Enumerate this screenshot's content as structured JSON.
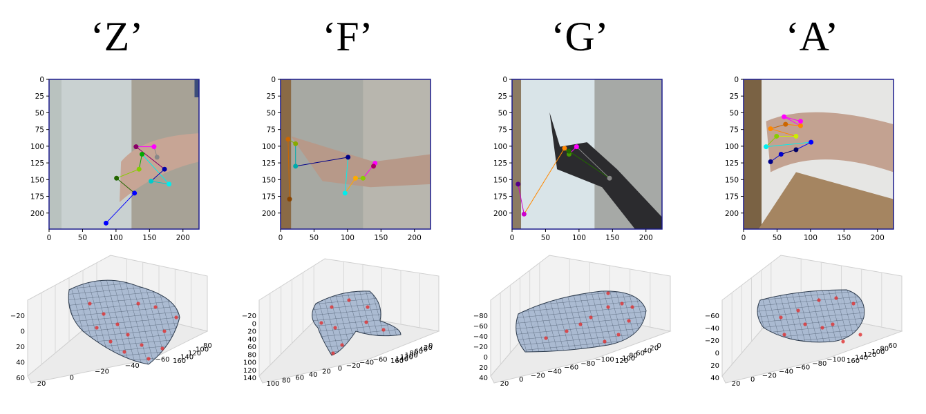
{
  "panels": [
    {
      "title": "‘Z’",
      "image": {
        "x_ticks": [
          "0",
          "50",
          "100",
          "150",
          "200"
        ],
        "y_ticks": [
          "0",
          "25",
          "50",
          "75",
          "100",
          "125",
          "150",
          "175",
          "200"
        ],
        "scene": "wall-right"
      },
      "mesh": {
        "z_ticks": [
          "−20",
          "0",
          "20",
          "40",
          "60"
        ],
        "x_ticks": [
          "20",
          "0",
          "−20",
          "−40",
          "−60"
        ],
        "y_ticks": [
          "80",
          "100",
          "120",
          "140",
          "160"
        ]
      }
    },
    {
      "title": "‘F’",
      "image": {
        "x_ticks": [
          "0",
          "50",
          "100",
          "150",
          "200"
        ],
        "y_ticks": [
          "0",
          "25",
          "50",
          "75",
          "100",
          "125",
          "150",
          "175",
          "200"
        ],
        "scene": "door-left"
      },
      "mesh": {
        "z_ticks": [
          "−20",
          "0",
          "20",
          "40",
          "60",
          "80",
          "100",
          "120",
          "140"
        ],
        "x_ticks": [
          "100",
          "80",
          "60",
          "40",
          "20",
          "0",
          "−20",
          "−40",
          "−60"
        ],
        "y_ticks": [
          "0",
          "20",
          "40",
          "60",
          "80",
          "100",
          "120",
          "140",
          "160"
        ]
      }
    },
    {
      "title": "‘G’",
      "image": {
        "x_ticks": [
          "0",
          "50",
          "100",
          "150",
          "200"
        ],
        "y_ticks": [
          "0",
          "25",
          "50",
          "75",
          "100",
          "125",
          "150",
          "175",
          "200"
        ],
        "scene": "bright-window"
      },
      "mesh": {
        "z_ticks": [
          "−80",
          "−60",
          "−40",
          "−20",
          "0",
          "20",
          "40"
        ],
        "x_ticks": [
          "20",
          "0",
          "−20",
          "−40",
          "−60",
          "−80",
          "−100"
        ],
        "y_ticks": [
          "0",
          "20",
          "40",
          "60",
          "80",
          "100",
          "120"
        ]
      }
    },
    {
      "title": "‘A’",
      "image": {
        "x_ticks": [
          "0",
          "50",
          "100",
          "150",
          "200"
        ],
        "y_ticks": [
          "0",
          "25",
          "50",
          "75",
          "100",
          "125",
          "150",
          "175",
          "200"
        ],
        "scene": "door-left-bright"
      },
      "mesh": {
        "z_ticks": [
          "−60",
          "−40",
          "−20",
          "0",
          "20",
          "40"
        ],
        "x_ticks": [
          "20",
          "0",
          "−20",
          "−40",
          "−60",
          "−80",
          "−100"
        ],
        "y_ticks": [
          "60",
          "80",
          "100",
          "120",
          "140",
          "160"
        ]
      }
    }
  ],
  "colors": {
    "frame": "#1a1a8c",
    "mesh_fill": "#9fb2cc",
    "mesh_edge": "#2d3b4d",
    "keypoint": "#e03030"
  }
}
